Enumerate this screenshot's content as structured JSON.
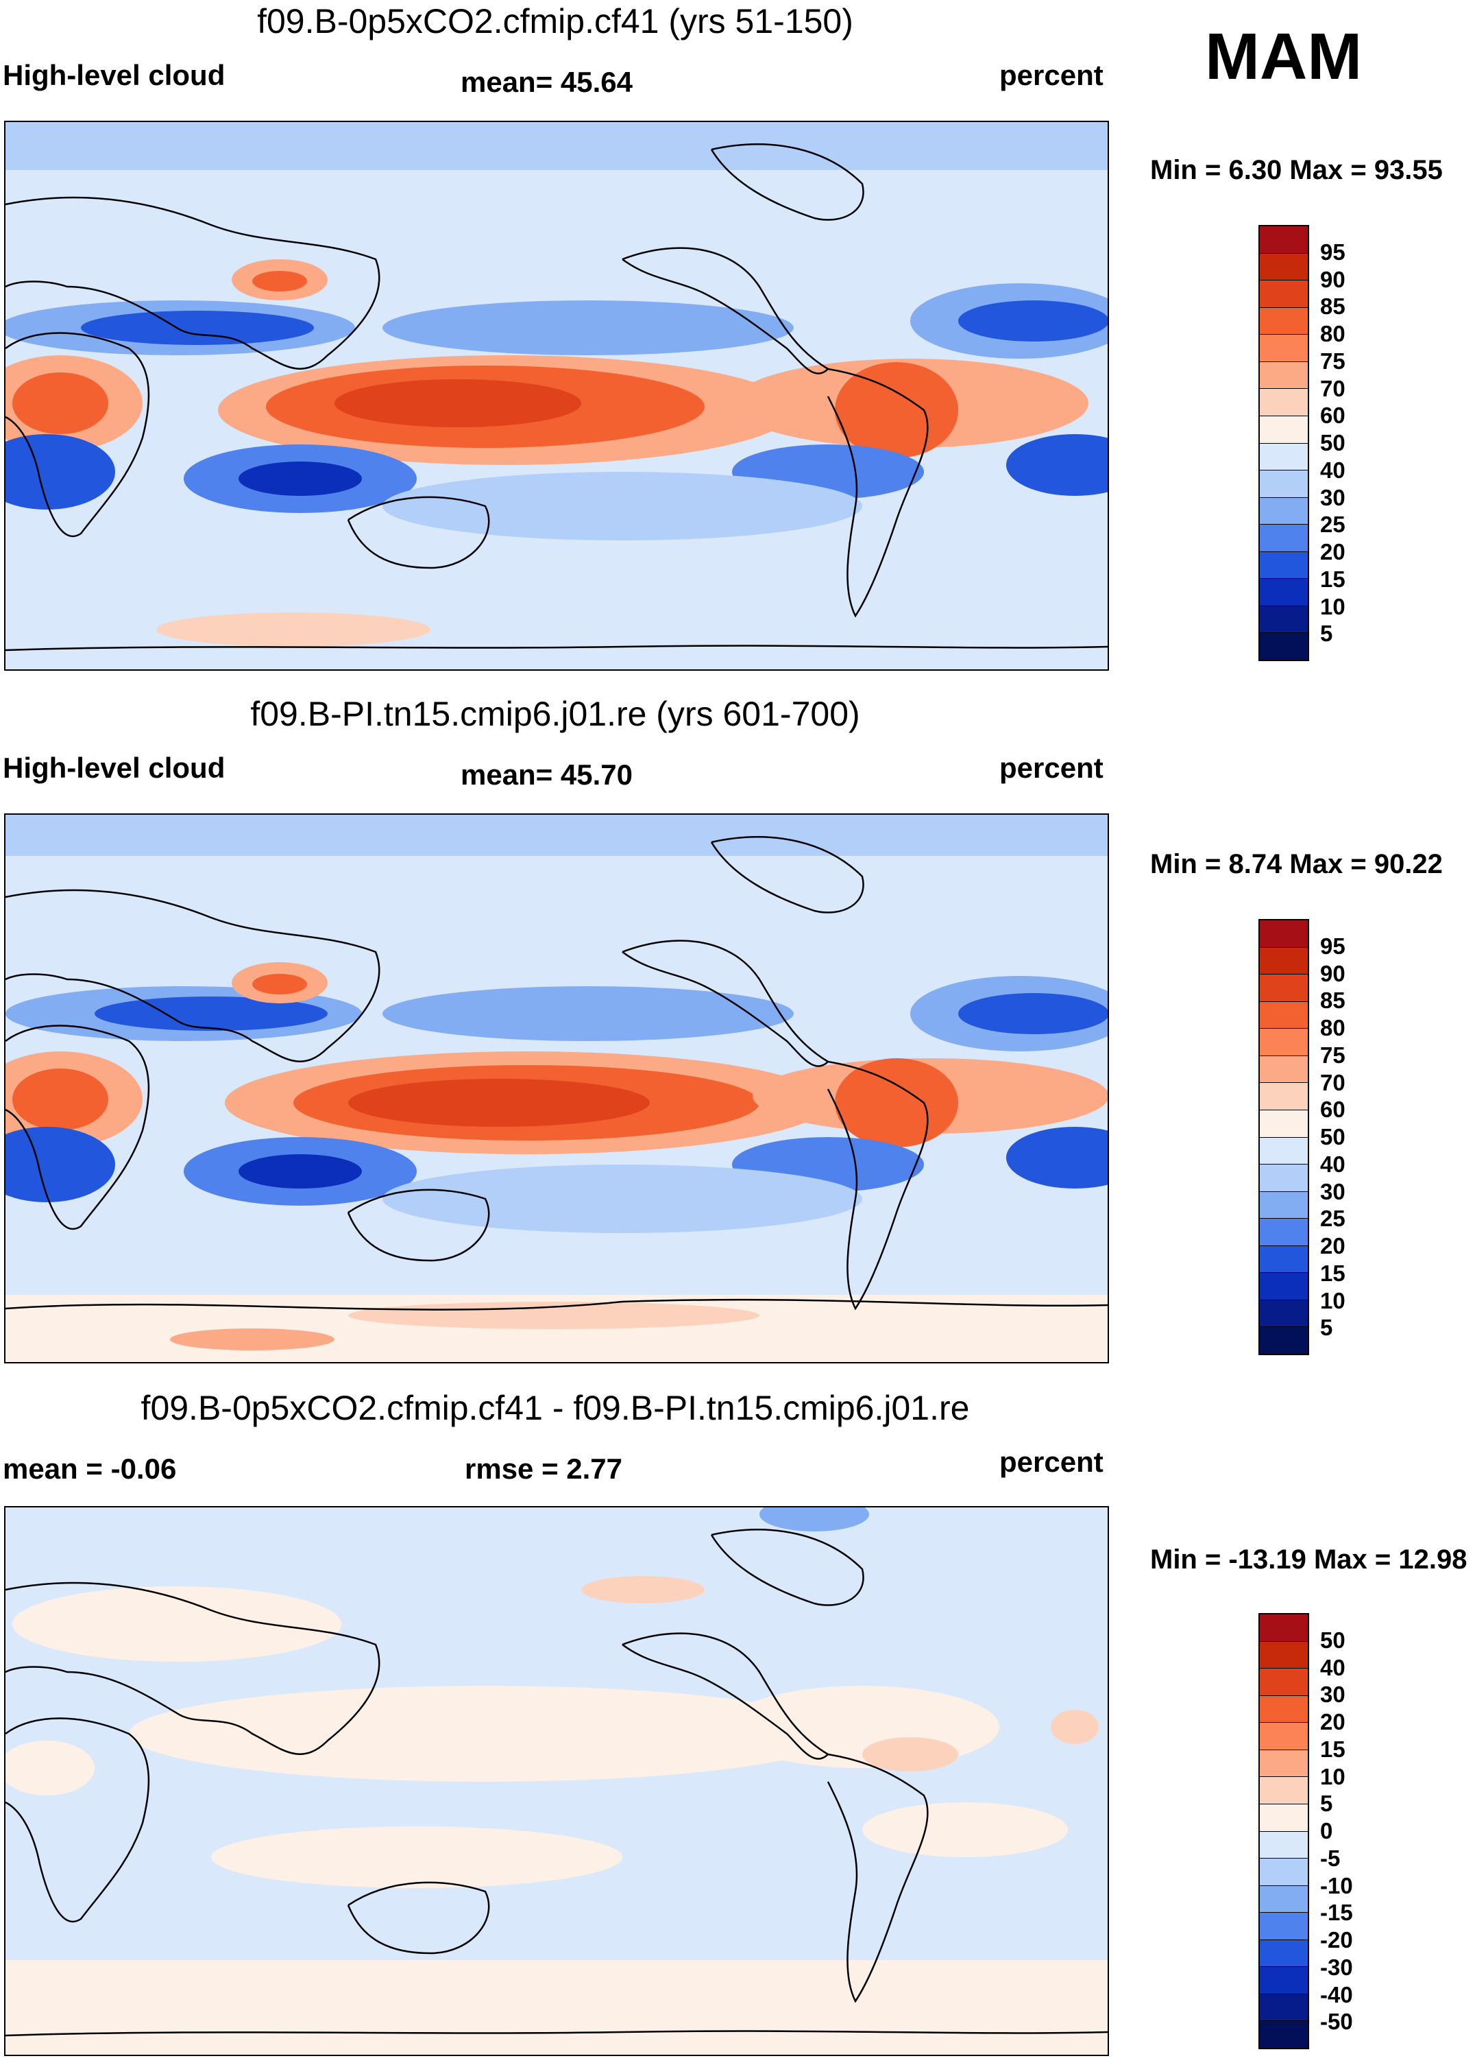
{
  "season": "MAM",
  "panels": [
    {
      "title": "f09.B-0p5xCO2.cfmip.cf41 (yrs 51-150)",
      "left_label": "High-level cloud",
      "center_label": "mean=  45.64",
      "right_label": "percent",
      "minmax": "Min =   6.30 Max =  93.55",
      "colorbar_labels": [
        "95",
        "90",
        "85",
        "80",
        "75",
        "70",
        "60",
        "50",
        "40",
        "30",
        "25",
        "20",
        "15",
        "10",
        "5"
      ],
      "colors": [
        "#a50f15",
        "#c62a0a",
        "#e0431b",
        "#f2612f",
        "#fb8355",
        "#fcaa85",
        "#fdd2bc",
        "#fdf0e6",
        "#d9e8fb",
        "#b1cff8",
        "#82adf3",
        "#4f82ec",
        "#2256dd",
        "#0b2ebb",
        "#061c8a",
        "#02105a"
      ]
    },
    {
      "title": "f09.B-PI.tn15.cmip6.j01.re (yrs 601-700)",
      "left_label": "High-level cloud",
      "center_label": "mean=  45.70",
      "right_label": "percent",
      "minmax": "Min =   8.74 Max =  90.22",
      "colorbar_labels": [
        "95",
        "90",
        "85",
        "80",
        "75",
        "70",
        "60",
        "50",
        "40",
        "30",
        "25",
        "20",
        "15",
        "10",
        "5"
      ],
      "colors": [
        "#a50f15",
        "#c62a0a",
        "#e0431b",
        "#f2612f",
        "#fb8355",
        "#fcaa85",
        "#fdd2bc",
        "#fdf0e6",
        "#d9e8fb",
        "#b1cff8",
        "#82adf3",
        "#4f82ec",
        "#2256dd",
        "#0b2ebb",
        "#061c8a",
        "#02105a"
      ]
    },
    {
      "title": "f09.B-0p5xCO2.cfmip.cf41 - f09.B-PI.tn15.cmip6.j01.re",
      "left_label": "mean =  -0.06",
      "center_label": "rmse =   2.77",
      "right_label": "percent",
      "minmax": "Min = -13.19 Max =  12.98",
      "colorbar_labels": [
        "50",
        "40",
        "30",
        "20",
        "15",
        "10",
        "5",
        "0",
        "-5",
        "-10",
        "-15",
        "-20",
        "-30",
        "-40",
        "-50"
      ],
      "colors": [
        "#a50f15",
        "#c62a0a",
        "#e0431b",
        "#f2612f",
        "#fb8355",
        "#fcaa85",
        "#fdd2bc",
        "#fdf0e6",
        "#d9e8fb",
        "#b1cff8",
        "#82adf3",
        "#4f82ec",
        "#2256dd",
        "#0b2ebb",
        "#061c8a",
        "#02105a"
      ]
    }
  ]
}
